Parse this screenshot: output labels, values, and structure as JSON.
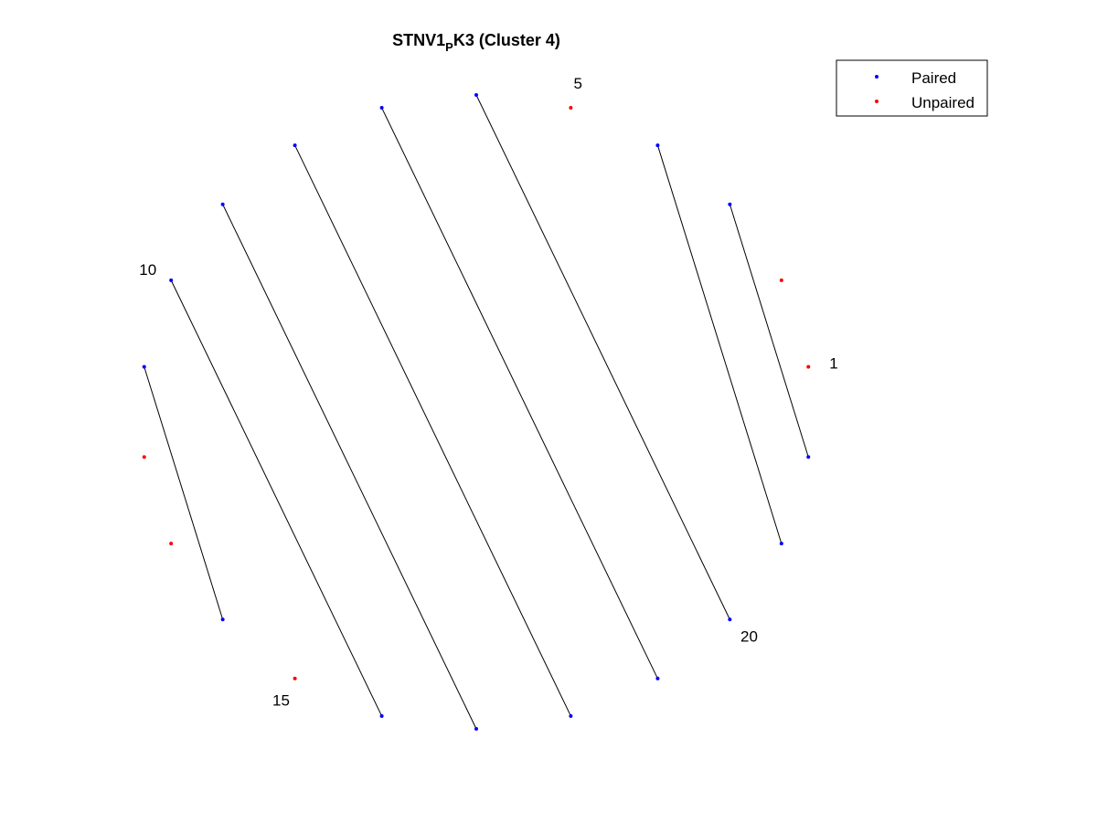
{
  "title": {
    "main": "STNV1",
    "subscript": "P",
    "rest": "K3 (Cluster 4)"
  },
  "legend": {
    "placement": "top-right",
    "items": [
      {
        "label": "Paired",
        "color": "#0000ff"
      },
      {
        "label": "Unpaired",
        "color": "#ff0000"
      }
    ]
  },
  "diagram_data": {
    "type": "arc-diagram-circle",
    "sequence_length": 22,
    "paired_color": "#0000ff",
    "unpaired_color": "#ff0000",
    "link_color": "#000000",
    "pairs": [
      [
        3,
        22
      ],
      [
        4,
        21
      ],
      [
        6,
        20
      ],
      [
        7,
        19
      ],
      [
        8,
        18
      ],
      [
        9,
        17
      ],
      [
        10,
        16
      ],
      [
        11,
        14
      ]
    ],
    "unpaired": [
      1,
      2,
      5,
      12,
      13,
      15
    ],
    "position_labels": [
      {
        "text": "1",
        "index": 1
      },
      {
        "text": "5",
        "index": 5
      },
      {
        "text": "10",
        "index": 10
      },
      {
        "text": "15",
        "index": 15
      },
      {
        "text": "20",
        "index": 20
      }
    ]
  }
}
